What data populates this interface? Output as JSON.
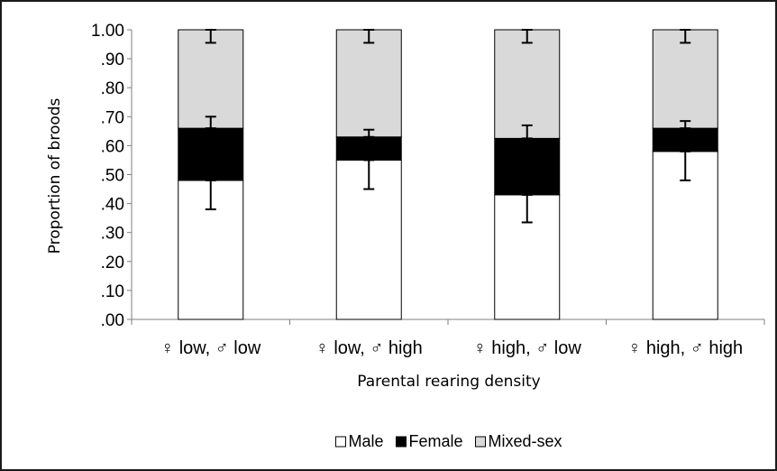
{
  "chart_data": {
    "type": "bar",
    "stacked": true,
    "categories": [
      "♀ low, ♂ low",
      "♀ low, ♂ high",
      "♀ high, ♂ low",
      "♀ high, ♂ high"
    ],
    "series": [
      {
        "name": "Male",
        "values": [
          0.48,
          0.55,
          0.43,
          0.58
        ],
        "color": "#ffffff"
      },
      {
        "name": "Female",
        "values": [
          0.18,
          0.08,
          0.195,
          0.08
        ],
        "color": "#000000"
      },
      {
        "name": "Mixed-sex",
        "values": [
          0.34,
          0.37,
          0.375,
          0.34
        ],
        "color": "#d9d9d9"
      }
    ],
    "error_bars": {
      "male": [
        {
          "low": 0.38,
          "high": 0.48
        },
        {
          "low": 0.45,
          "high": 0.55
        },
        {
          "low": 0.335,
          "high": 0.43
        },
        {
          "low": 0.48,
          "high": 0.58
        }
      ],
      "female_top": [
        {
          "low": 0.66,
          "high": 0.7
        },
        {
          "low": 0.63,
          "high": 0.655
        },
        {
          "low": 0.625,
          "high": 0.67
        },
        {
          "low": 0.66,
          "high": 0.685
        }
      ],
      "mixed_top": [
        {
          "low": 0.955,
          "high": 1.0
        },
        {
          "low": 0.955,
          "high": 1.0
        },
        {
          "low": 0.955,
          "high": 1.0
        },
        {
          "low": 0.955,
          "high": 1.0
        }
      ]
    },
    "yticks": [
      ".00",
      ".10",
      ".20",
      ".30",
      ".40",
      ".50",
      ".60",
      ".70",
      ".80",
      ".90",
      "1.00"
    ],
    "ylim": [
      0,
      1
    ],
    "xlabel": "Parental rearing density",
    "ylabel": "Proportion of broods",
    "title": "",
    "legend_position": "bottom",
    "grid": false
  }
}
